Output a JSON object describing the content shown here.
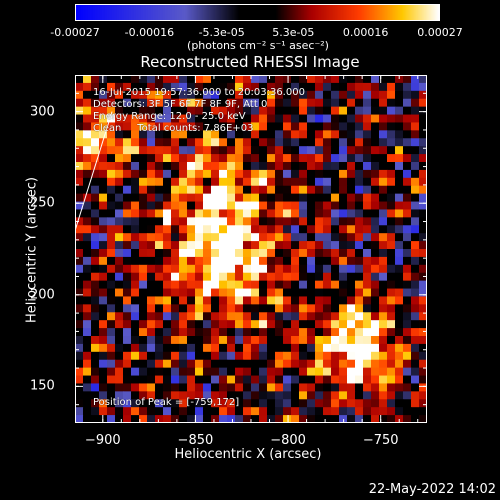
{
  "colorbar": {
    "ticks": [
      "-0.00027",
      "-0.00016",
      "-5.3e-05",
      "5.3e-05",
      "0.00016",
      "0.00027"
    ],
    "tick_values": [
      -0.00027,
      -0.00016,
      -5.3e-05,
      5.3e-05,
      0.00016,
      0.00027
    ],
    "range": [
      -0.00027,
      0.00027
    ],
    "unit": "(photons cm⁻² s⁻¹ asec⁻²)"
  },
  "chart_data": {
    "type": "heatmap",
    "title": "Reconstructed RHESSI Image",
    "xlabel": "Heliocentric X (arcsec)",
    "ylabel": "Heliocentric Y (arcsec)",
    "xlim": [
      -915,
      -725
    ],
    "ylim": [
      130,
      320
    ],
    "xticks": [
      -900,
      -850,
      -800,
      -750
    ],
    "yticks": [
      150,
      200,
      250,
      300
    ],
    "xtick_labels": [
      "−900",
      "−850",
      "−800",
      "−750"
    ],
    "ytick_labels": [
      "150",
      "200",
      "250",
      "300"
    ],
    "peak": [
      -759,
      172
    ],
    "bright_regions": [
      {
        "x": -835,
        "y": 232
      },
      {
        "x": -763,
        "y": 172
      },
      {
        "x": -905,
        "y": 285
      }
    ],
    "limb_line": [
      [
        -915,
        235
      ],
      [
        -895,
        300
      ]
    ]
  },
  "annotations": [
    "16-Jul-2015 19:57:36.000 to 20:03:36.000",
    "Detectors: 3F 5F 6F 7F 8F 9F, Att 0",
    "Energy Range: 12.0 - 25.0 keV",
    "Clean     Total counts: 7.86E+03"
  ],
  "peak_label": "Position of Peak = [-759,172]",
  "timestamp": "22-May-2022 14:02"
}
